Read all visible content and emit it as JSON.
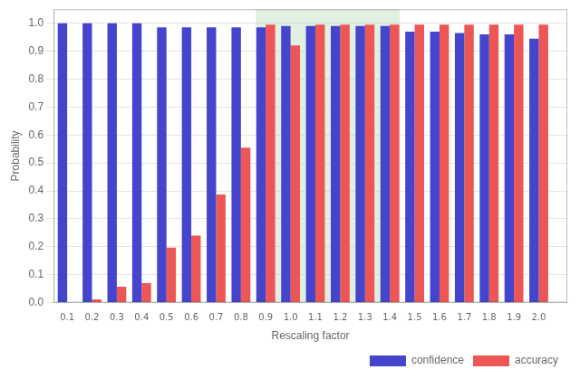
{
  "chart_data": {
    "type": "bar",
    "x_label": "Rescaling factor",
    "y_label": "Probability",
    "x": [
      0.1,
      0.2,
      0.3,
      0.4,
      0.5,
      0.6,
      0.7,
      0.8,
      0.9,
      1.0,
      1.1,
      1.2,
      1.3,
      1.4,
      1.5,
      1.6,
      1.7,
      1.8,
      1.9,
      2.0
    ],
    "series": [
      {
        "name": "confidence",
        "color": "#4444cc",
        "values": [
          1.0,
          1.0,
          1.0,
          1.0,
          0.985,
          0.985,
          0.985,
          0.985,
          0.985,
          0.99,
          0.99,
          0.99,
          0.99,
          0.99,
          0.97,
          0.97,
          0.965,
          0.96,
          0.96,
          0.945
        ]
      },
      {
        "name": "accuracy",
        "color": "#ee5555",
        "values": [
          0.0,
          0.012,
          0.057,
          0.07,
          0.197,
          0.24,
          0.387,
          0.555,
          0.995,
          0.92,
          0.995,
          0.995,
          0.995,
          0.995,
          0.995,
          0.995,
          0.995,
          0.995,
          0.995,
          0.995
        ]
      }
    ],
    "xlim": [
      0.045,
      2.115
    ],
    "xticks": [
      0.1,
      0.2,
      0.3,
      0.4,
      0.5,
      0.6,
      0.7,
      0.8,
      0.9,
      {
        "value": 1.0,
        "label": "1.0"
      },
      1.1,
      1.2,
      1.3,
      1.4,
      1.5,
      1.6,
      1.7,
      1.8,
      1.9,
      {
        "value": 2.0,
        "label": "2.0"
      }
    ],
    "ylim": [
      0.0,
      1.05
    ],
    "yticks": [
      {
        "value": 0.0,
        "label": "0.0"
      },
      0.1,
      0.2,
      0.3,
      0.4,
      0.5,
      0.6,
      0.7,
      0.8,
      0.9,
      {
        "value": 1.0,
        "label": "1.0"
      }
    ],
    "highlight": {
      "x_start": 0.86,
      "x_end": 1.44,
      "color": "#aad4aa"
    },
    "grid": true,
    "legend": "lower right"
  }
}
